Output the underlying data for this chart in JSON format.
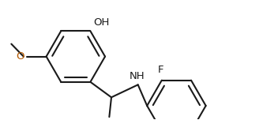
{
  "bg": "#ffffff",
  "lc": "#1a1a1a",
  "oc": "#b35900",
  "lw": 1.5,
  "fs": 9.5,
  "figsize": [
    3.52,
    1.52
  ],
  "dpi": 100,
  "r": 0.42,
  "xlim": [
    -0.15,
    3.6
  ],
  "ylim": [
    -0.15,
    1.55
  ]
}
